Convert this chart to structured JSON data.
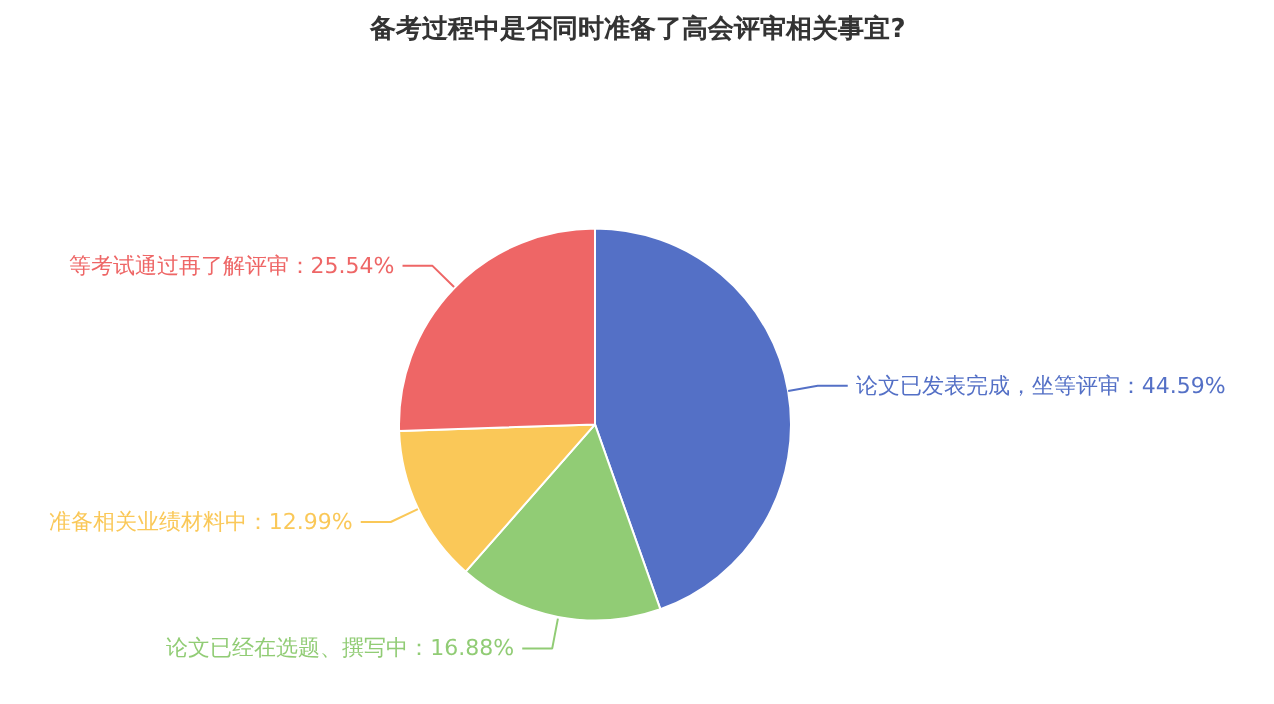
{
  "chart_data": {
    "type": "pie",
    "title": "备考过程中是否同时准备了高会评审相关事宜?",
    "categories": [
      "论文已发表完成，坐等评审",
      "论文已经在选题、撰写中",
      "准备相关业绩材料中",
      "等考试通过再了解评审"
    ],
    "values": [
      44.59,
      16.88,
      12.99,
      25.54
    ],
    "colors": [
      "#5470c6",
      "#91cc75",
      "#fac858",
      "#ee6666"
    ],
    "value_labels": [
      "44.59%",
      "16.88%",
      "12.99%",
      "25.54%"
    ]
  }
}
